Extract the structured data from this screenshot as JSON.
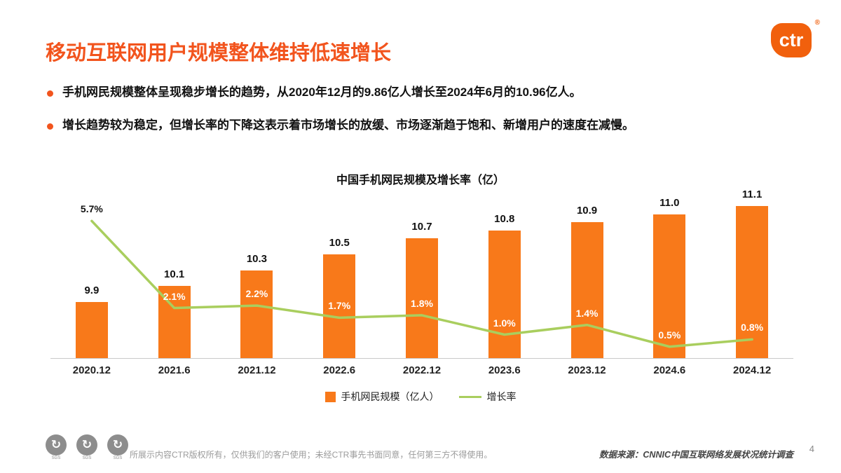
{
  "page": {
    "title": "移动互联网用户规模整体维持低速增长",
    "page_number": "4"
  },
  "logo": {
    "text": "ctr",
    "registered": "®"
  },
  "bullets": [
    "手机网民规模整体呈现稳步增长的趋势，从2020年12月的9.86亿人增长至2024年6月的10.96亿人。",
    "增长趋势较为稳定，但增长率的下降这表示着市场增长的放缓、市场逐渐趋于饱和、新增用户的速度在减慢。"
  ],
  "chart_data": {
    "type": "bar",
    "title": "中国手机网民规模及增长率（亿）",
    "categories": [
      "2020.12",
      "2021.6",
      "2021.12",
      "2022.6",
      "2022.12",
      "2023.6",
      "2023.12",
      "2024.6",
      "2024.12"
    ],
    "series": [
      {
        "name": "手机网民规模（亿人）",
        "type": "bar",
        "color": "#F8791A",
        "values": [
          9.9,
          10.1,
          10.3,
          10.5,
          10.7,
          10.8,
          10.9,
          11.0,
          11.1
        ],
        "labels": [
          "9.9",
          "10.1",
          "10.3",
          "10.5",
          "10.7",
          "10.8",
          "10.9",
          "11.0",
          "11.1"
        ]
      },
      {
        "name": "增长率",
        "type": "line",
        "color": "#A9CE5E",
        "unit": "%",
        "values": [
          5.7,
          2.1,
          2.2,
          1.7,
          1.8,
          1.0,
          1.4,
          0.5,
          0.8
        ],
        "labels": [
          "5.7%",
          "2.1%",
          "2.2%",
          "1.7%",
          "1.8%",
          "1.0%",
          "1.4%",
          "0.5%",
          "0.8%"
        ]
      }
    ],
    "bar_axis_min": 9.2,
    "line_axis_min": 0,
    "grid": false,
    "legend_position": "bottom"
  },
  "footer": {
    "stamps": [
      "SGS",
      "SGS",
      "SGS"
    ],
    "copyright": "所展示内容CTR版权所有，仅供我们的客户使用；未经CTR事先书面同意，任何第三方不得使用。",
    "source": "数据来源：CNNIC中国互联网络发展状况统计调查"
  },
  "colors": {
    "accent": "#F2541D",
    "bar": "#F8791A",
    "line": "#A9CE5E"
  }
}
